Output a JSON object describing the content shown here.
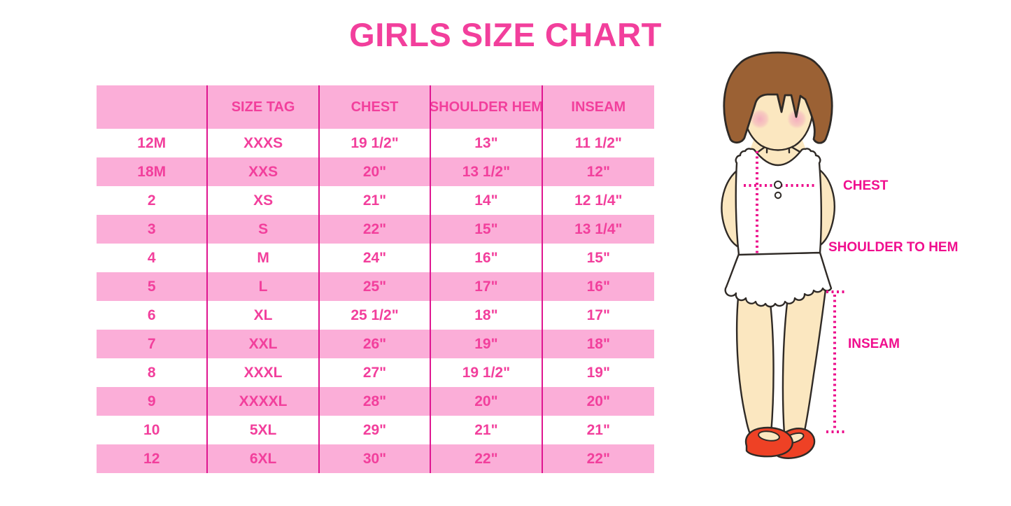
{
  "chart_data": {
    "type": "table",
    "title": "GIRLS SIZE CHART",
    "columns": [
      "",
      "SIZE TAG",
      "CHEST",
      "SHOULDER HEM",
      "INSEAM"
    ],
    "rows": [
      [
        "12M",
        "XXXS",
        "19 1/2\"",
        "13\"",
        "11 1/2\""
      ],
      [
        "18M",
        "XXS",
        "20\"",
        "13 1/2\"",
        "12\""
      ],
      [
        "2",
        "XS",
        "21\"",
        "14\"",
        "12 1/4\""
      ],
      [
        "3",
        "S",
        "22\"",
        "15\"",
        "13 1/4\""
      ],
      [
        "4",
        "M",
        "24\"",
        "16\"",
        "15\""
      ],
      [
        "5",
        "L",
        "25\"",
        "17\"",
        "16\""
      ],
      [
        "6",
        "XL",
        "25 1/2\"",
        "18\"",
        "17\""
      ],
      [
        "7",
        "XXL",
        "26\"",
        "19\"",
        "18\""
      ],
      [
        "8",
        "XXXL",
        "27\"",
        "19 1/2\"",
        "19\""
      ],
      [
        "9",
        "XXXXL",
        "28\"",
        "20\"",
        "20\""
      ],
      [
        "10",
        "5XL",
        "29\"",
        "21\"",
        "21\""
      ],
      [
        "12",
        "6XL",
        "30\"",
        "22\"",
        "22\""
      ]
    ],
    "legend_position": "none",
    "grid": "vertical-magenta-separators, alternating pink/white row bands"
  },
  "colors": {
    "title_pink": "#F23F9C",
    "row_band_pink": "#FBAED8",
    "grid_line_magenta": "#DF1690",
    "table_text_pink": "#F23F9C",
    "measure_label_magenta": "#F00E8E",
    "dotted_measure_pink": "#EC0F8C",
    "hair_brown": "#9B6134",
    "skin_tone": "#FBE7C0",
    "blush_pink": "#F3A8BE",
    "shoe_red": "#EE4125",
    "outline_dark": "#2F2A26"
  },
  "illustration": {
    "description": "cartoon girl with brown bob hair, white ruffled sleeveless top, red mary-jane shoes, magenta dotted measurement guides",
    "labels": {
      "chest": "CHEST",
      "shoulder_to_hem": "SHOULDER TO HEM",
      "inseam": "INSEAM"
    }
  }
}
